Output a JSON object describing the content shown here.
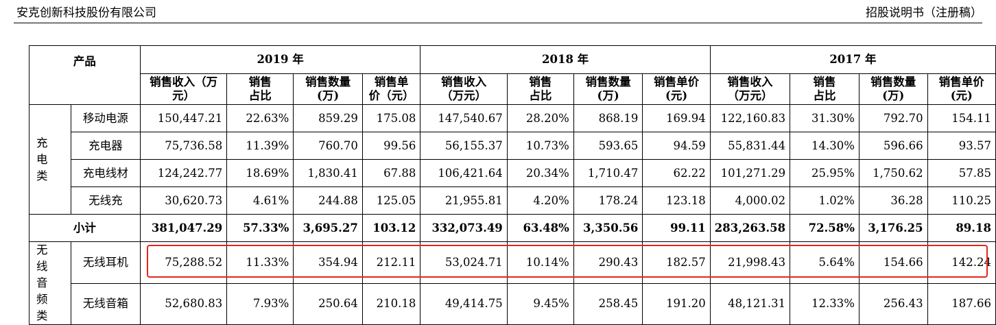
{
  "header": {
    "company": "安克创新科技股份有限公司",
    "doc": "招股说明书（注册稿）"
  },
  "table": {
    "product_header": "产品",
    "years": [
      "2019 年",
      "2018 年",
      "2017 年"
    ],
    "col_headers": [
      {
        "l1": "销售收入（万",
        "l2": "元）"
      },
      {
        "l1": "销售",
        "l2": "占比"
      },
      {
        "l1": "销售数量",
        "l2": "(万)"
      },
      {
        "l1": "销售单",
        "l2": "价（元）"
      },
      {
        "l1": "销售收入",
        "l2": "（万元）"
      },
      {
        "l1": "销售",
        "l2": "占比"
      },
      {
        "l1": "销售数量",
        "l2": "(万)"
      },
      {
        "l1": "销售单价",
        "l2": "(元)"
      },
      {
        "l1": "销售收入",
        "l2": "（万元）"
      },
      {
        "l1": "销售",
        "l2": "占比"
      },
      {
        "l1": "销售数量",
        "l2": "(万)"
      },
      {
        "l1": "销售单价",
        "l2": "(元)"
      }
    ],
    "cat_charging": {
      "l1": "充电",
      "l2": "类"
    },
    "cat_audio": {
      "l1": "无线",
      "l2": "音频",
      "l3": "类"
    },
    "subtotal_label": "小计",
    "rows": [
      {
        "name": "移动电源",
        "v": [
          "150,447.21",
          "22.63%",
          "859.29",
          "175.08",
          "147,540.67",
          "28.20%",
          "868.19",
          "169.94",
          "122,160.83",
          "31.30%",
          "792.70",
          "154.11"
        ]
      },
      {
        "name": "充电器",
        "v": [
          "75,736.58",
          "11.39%",
          "760.70",
          "99.56",
          "56,155.37",
          "10.73%",
          "593.65",
          "94.59",
          "55,831.44",
          "14.30%",
          "596.66",
          "93.57"
        ]
      },
      {
        "name": "充电线材",
        "v": [
          "124,242.77",
          "18.69%",
          "1,830.41",
          "67.88",
          "106,421.64",
          "20.34%",
          "1,710.47",
          "62.22",
          "101,271.29",
          "25.95%",
          "1,750.62",
          "57.85"
        ]
      },
      {
        "name": "无线充",
        "v": [
          "30,620.73",
          "4.61%",
          "244.88",
          "125.05",
          "21,955.81",
          "4.20%",
          "178.24",
          "123.18",
          "4,000.02",
          "1.02%",
          "36.28",
          "110.25"
        ]
      },
      {
        "name": "小计",
        "v": [
          "381,047.29",
          "57.33%",
          "3,695.27",
          "103.12",
          "332,073.49",
          "63.48%",
          "3,350.56",
          "99.11",
          "283,263.58",
          "72.58%",
          "3,176.25",
          "89.18"
        ]
      },
      {
        "name": "无线耳机",
        "v": [
          "75,288.52",
          "11.33%",
          "354.94",
          "212.11",
          "53,024.71",
          "10.14%",
          "290.43",
          "182.57",
          "21,998.43",
          "5.64%",
          "154.66",
          "142.24"
        ]
      },
      {
        "name": "无线音箱",
        "v": [
          "52,680.83",
          "7.93%",
          "250.64",
          "210.18",
          "49,414.75",
          "9.45%",
          "258.45",
          "191.20",
          "48,121.31",
          "12.33%",
          "256.43",
          "187.66"
        ]
      }
    ]
  },
  "highlight_color": "#e6241d"
}
